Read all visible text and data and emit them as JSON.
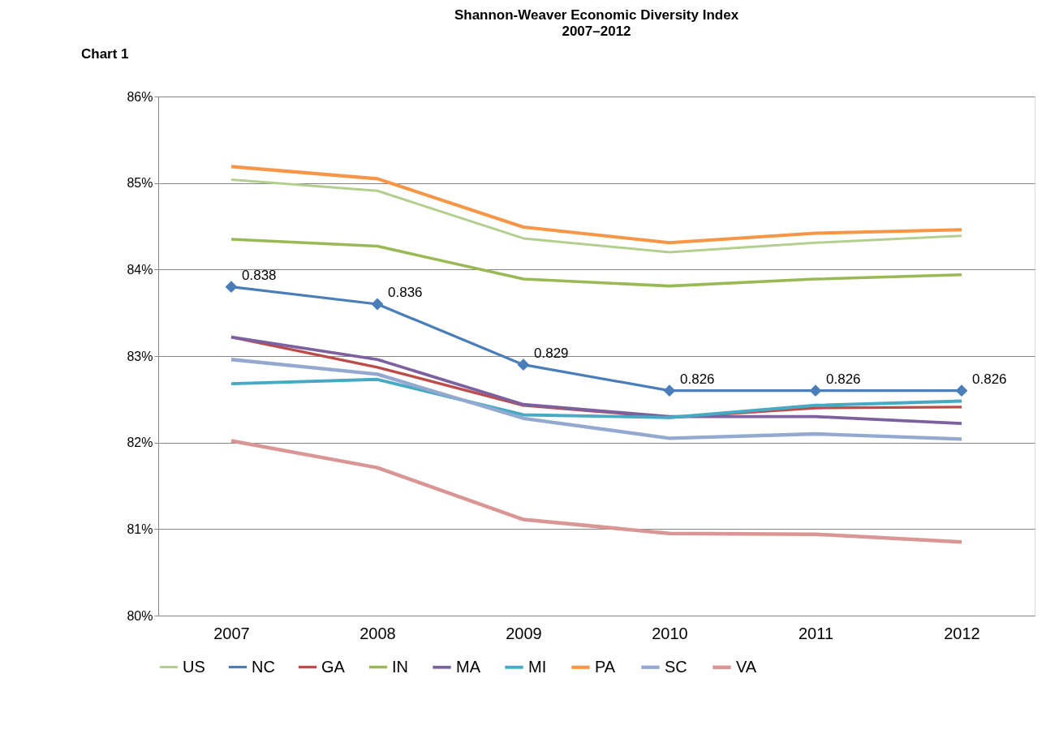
{
  "chart_data": {
    "type": "line",
    "title": "Shannon-Weaver Economic Diversity Index",
    "subtitle": "2007–2012",
    "annotations": [
      "Chart 1"
    ],
    "categories": [
      "2007",
      "2008",
      "2009",
      "2010",
      "2011",
      "2012"
    ],
    "series": [
      {
        "name": "US",
        "color": "#b3cf8f",
        "marker": "none",
        "values": [
          0.8504,
          0.8491,
          0.8436,
          0.842,
          0.8431,
          0.8439
        ]
      },
      {
        "name": "NC",
        "color": "#4a7ebb",
        "marker": "diamond",
        "values": [
          0.838,
          0.836,
          0.829,
          0.826,
          0.826,
          0.826
        ],
        "value_labels": [
          "0.838",
          "0.836",
          "0.829",
          "0.826",
          "0.826",
          "0.826"
        ]
      },
      {
        "name": "GA",
        "color": "#be4b48",
        "marker": "none",
        "values": [
          0.8322,
          0.8287,
          0.8243,
          0.8229,
          0.824,
          0.8241
        ]
      },
      {
        "name": "IN",
        "color": "#98b954",
        "marker": "none",
        "values": [
          0.8435,
          0.8427,
          0.8389,
          0.8381,
          0.8389,
          0.8394
        ]
      },
      {
        "name": "MA",
        "color": "#7d60a0",
        "marker": "none",
        "values": [
          0.8322,
          0.8296,
          0.8244,
          0.823,
          0.823,
          0.8222
        ]
      },
      {
        "name": "MI",
        "color": "#46aac5",
        "marker": "none",
        "values": [
          0.8268,
          0.8273,
          0.8232,
          0.8229,
          0.8243,
          0.8248
        ]
      },
      {
        "name": "PA",
        "color": "#f79646",
        "marker": "none",
        "values": [
          0.8519,
          0.8505,
          0.8449,
          0.8431,
          0.8442,
          0.8446
        ]
      },
      {
        "name": "SC",
        "color": "#93a9cf",
        "marker": "none",
        "values": [
          0.8296,
          0.8279,
          0.8228,
          0.8205,
          0.821,
          0.8204
        ]
      },
      {
        "name": "VA",
        "color": "#d99694",
        "marker": "none",
        "values": [
          0.8202,
          0.8171,
          0.8111,
          0.8095,
          0.8094,
          0.8085
        ]
      }
    ],
    "ylim": [
      0.8,
      0.86
    ],
    "yticks": [
      {
        "value": 0.8,
        "label": "80%"
      },
      {
        "value": 0.81,
        "label": "81%"
      },
      {
        "value": 0.82,
        "label": "82%"
      },
      {
        "value": 0.83,
        "label": "83%"
      },
      {
        "value": 0.84,
        "label": "84%"
      },
      {
        "value": 0.85,
        "label": "85%"
      },
      {
        "value": 0.86,
        "label": "86%"
      }
    ],
    "grid": "y",
    "legend": "bottom",
    "line_style": "solid"
  }
}
